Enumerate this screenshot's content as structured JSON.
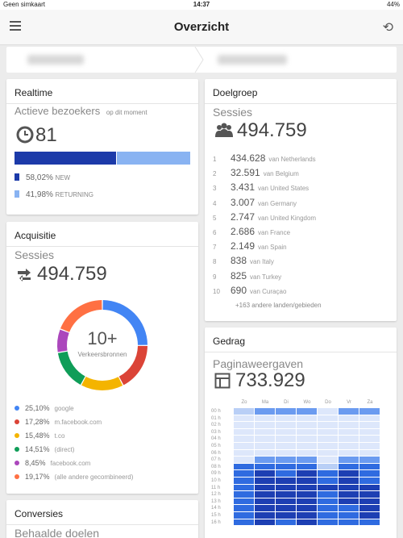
{
  "status": {
    "carrier": "Geen simkaart",
    "time": "14:37",
    "battery": "44%"
  },
  "appbar": {
    "title": "Overzicht"
  },
  "realtime": {
    "title": "Realtime",
    "subtitle": "Actieve bezoekers",
    "subtitle_note": "op dit moment",
    "count": "81",
    "new_fraction": 0.5802,
    "new_pct": "58,02%",
    "new_label": "NEW",
    "returning_pct": "41,98%",
    "returning_label": "RETURNING",
    "colors": {
      "new": "#1c3aa9",
      "returning": "#89b3f2"
    }
  },
  "acquisitie": {
    "title": "Acquisitie",
    "label": "Sessies",
    "value": "494.759",
    "center_value": "10+",
    "center_label": "Verkeersbronnen",
    "sources": [
      {
        "pct": "25,10%",
        "name": "google",
        "value": 25.1,
        "color": "#4285f4"
      },
      {
        "pct": "17,28%",
        "name": "m.facebook.com",
        "value": 17.28,
        "color": "#db4437"
      },
      {
        "pct": "15,48%",
        "name": "t.co",
        "value": 15.48,
        "color": "#f4b400"
      },
      {
        "pct": "14,51%",
        "name": "(direct)",
        "value": 14.51,
        "color": "#0f9d58"
      },
      {
        "pct": "8,45%",
        "name": "facebook.com",
        "value": 8.45,
        "color": "#ab47bc"
      },
      {
        "pct": "19,17%",
        "name": "(alle andere gecombineerd)",
        "value": 19.17,
        "color": "#ff7043"
      }
    ]
  },
  "conversies": {
    "title": "Conversies",
    "label": "Behaalde doelen"
  },
  "doelgroep": {
    "title": "Doelgroep",
    "label": "Sessies",
    "value": "494.759",
    "countries": [
      {
        "rank": "1",
        "value": "434.628",
        "name": "van Netherlands"
      },
      {
        "rank": "2",
        "value": "32.591",
        "name": "van Belgium"
      },
      {
        "rank": "3",
        "value": "3.431",
        "name": "van United States"
      },
      {
        "rank": "4",
        "value": "3.007",
        "name": "van Germany"
      },
      {
        "rank": "5",
        "value": "2.747",
        "name": "van United Kingdom"
      },
      {
        "rank": "6",
        "value": "2.686",
        "name": "van France"
      },
      {
        "rank": "7",
        "value": "2.149",
        "name": "van Spain"
      },
      {
        "rank": "8",
        "value": "838",
        "name": "van Italy"
      },
      {
        "rank": "9",
        "value": "825",
        "name": "van Turkey"
      },
      {
        "rank": "10",
        "value": "690",
        "name": "van Curaçao"
      }
    ],
    "more": "+163 andere landen/gebieden"
  },
  "gedrag": {
    "title": "Gedrag",
    "label": "Paginaweergaven",
    "value": "733.929",
    "days": [
      "Zo",
      "Ma",
      "Di",
      "Wo",
      "Do",
      "Vr",
      "Za"
    ],
    "hours": [
      "00 h",
      "01 h",
      "02 h",
      "03 h",
      "04 h",
      "05 h",
      "06 h",
      "07 h",
      "08 h",
      "09 h",
      "10 h",
      "11 h",
      "12 h",
      "13 h",
      "14 h",
      "15 h",
      "16 h"
    ],
    "levels": [
      [
        1,
        2,
        2,
        2,
        0,
        2,
        2
      ],
      [
        0,
        0,
        0,
        0,
        0,
        0,
        0
      ],
      [
        0,
        0,
        0,
        0,
        0,
        0,
        0
      ],
      [
        0,
        0,
        0,
        0,
        0,
        0,
        0
      ],
      [
        0,
        0,
        0,
        0,
        0,
        0,
        0
      ],
      [
        0,
        0,
        0,
        0,
        0,
        0,
        0
      ],
      [
        0,
        0,
        0,
        0,
        0,
        0,
        0
      ],
      [
        0,
        2,
        2,
        2,
        0,
        2,
        2
      ],
      [
        3,
        3,
        3,
        3,
        1,
        3,
        3
      ],
      [
        3,
        4,
        3,
        4,
        3,
        4,
        3
      ],
      [
        3,
        4,
        4,
        4,
        3,
        4,
        3
      ],
      [
        3,
        4,
        4,
        4,
        4,
        4,
        4
      ],
      [
        3,
        4,
        4,
        4,
        3,
        4,
        4
      ],
      [
        3,
        4,
        4,
        4,
        3,
        4,
        4
      ],
      [
        3,
        4,
        4,
        4,
        3,
        3,
        4
      ],
      [
        3,
        4,
        4,
        4,
        3,
        3,
        4
      ],
      [
        3,
        4,
        3,
        4,
        3,
        3,
        3
      ]
    ],
    "palette": [
      "#dde7fb",
      "#b9cff6",
      "#6b9bf0",
      "#2f6be0",
      "#1d3fb3"
    ]
  }
}
